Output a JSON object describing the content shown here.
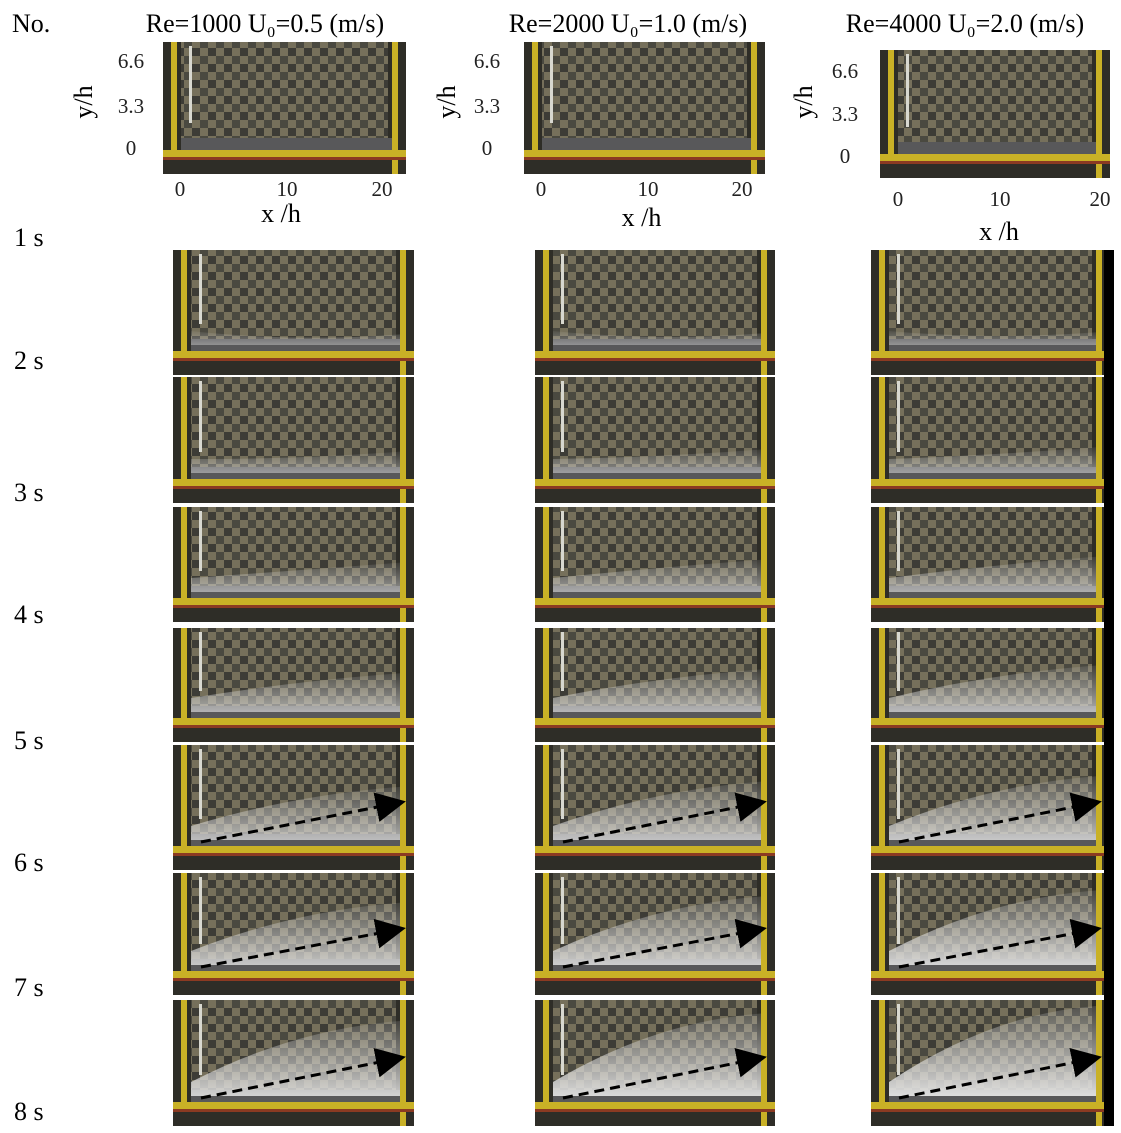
{
  "header": {
    "no": "No.",
    "columns": [
      {
        "title": "Re=1000 U₀=0.5 (m/s)",
        "y_label": "y/h",
        "x_label": "x /h",
        "yticks": [
          "6.6",
          "3.3",
          "0"
        ],
        "xticks": [
          "0",
          "10",
          "20"
        ]
      },
      {
        "title": "Re=2000 U₀=1.0 (m/s)",
        "y_label": "y/h",
        "x_label": "x /h",
        "yticks": [
          "6.6",
          "3.3",
          "0"
        ],
        "xticks": [
          "0",
          "10",
          "20"
        ]
      },
      {
        "title": "Re=4000 U₀=2.0 (m/s)",
        "y_label": "y/h",
        "x_label": "x /h",
        "yticks": [
          "6.6",
          "3.3",
          "0"
        ],
        "xticks": [
          "0",
          "10",
          "20"
        ]
      }
    ]
  },
  "rows": [
    "1 s",
    "2 s",
    "3 s",
    "4 s",
    "5 s",
    "6 s",
    "7 s",
    "8 s"
  ]
}
